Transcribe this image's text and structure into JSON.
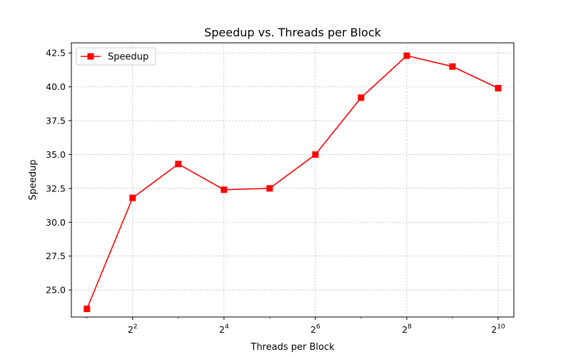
{
  "chart_data": {
    "type": "line",
    "title": "Speedup vs. Threads per Block",
    "xlabel": "Threads per Block",
    "ylabel": "Speedup",
    "x_scale": "log2",
    "x": [
      2,
      4,
      8,
      16,
      32,
      64,
      128,
      256,
      512,
      1024
    ],
    "series": [
      {
        "name": "Speedup",
        "color": "#ff0000",
        "marker": "square",
        "values": [
          23.6,
          31.8,
          34.3,
          32.4,
          32.5,
          35.0,
          39.2,
          42.3,
          41.5,
          39.9
        ]
      }
    ],
    "xlim": [
      1.58,
      1300
    ],
    "ylim": [
      23.0,
      43.25
    ],
    "xticks": [
      {
        "value": 4,
        "base": "2",
        "exp": "2"
      },
      {
        "value": 16,
        "base": "2",
        "exp": "4"
      },
      {
        "value": 64,
        "base": "2",
        "exp": "6"
      },
      {
        "value": 256,
        "base": "2",
        "exp": "8"
      },
      {
        "value": 1024,
        "base": "2",
        "exp": "10"
      }
    ],
    "yticks": [
      "25.0",
      "27.5",
      "30.0",
      "32.5",
      "35.0",
      "37.5",
      "40.0",
      "42.5"
    ],
    "grid": true,
    "legend_position": "top-left"
  }
}
